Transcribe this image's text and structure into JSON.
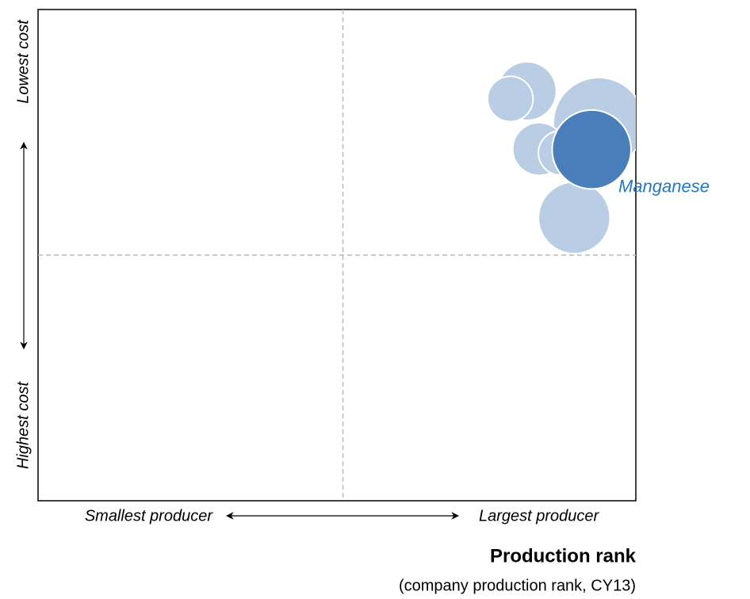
{
  "chart_data": {
    "type": "bubble",
    "y_high_label": "Lowest cost",
    "y_low_label": "Highest cost",
    "x_low_label": "Smallest producer",
    "x_high_label": "Largest producer",
    "xlabel": "Production rank",
    "xlabel_sub": "(company production rank, CY13)",
    "xlim": [
      0,
      100
    ],
    "ylim": [
      0,
      100
    ],
    "reference_lines": {
      "x": 51,
      "y": 50
    },
    "series": [
      {
        "color": "#b9cde5",
        "x": [
          81.8,
          79.0,
          93.8,
          83.8,
          87.4,
          89.7
        ],
        "y": [
          83.4,
          81.8,
          76.9,
          71.6,
          70.8,
          57.6
        ],
        "size": [
          4.9,
          3.8,
          7.6,
          4.4,
          3.7,
          6.0
        ]
      },
      {
        "name": "Manganese",
        "color": "#4a7ebb",
        "label_color": "#1f78c8",
        "x": [
          92.6
        ],
        "y": [
          71.5
        ],
        "size": [
          6.6
        ]
      }
    ]
  }
}
